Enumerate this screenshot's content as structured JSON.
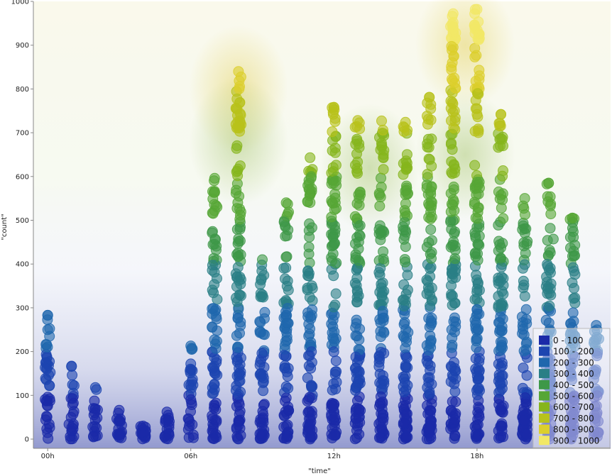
{
  "chart_data": {
    "type": "scatter",
    "xlabel": "\"time\"",
    "ylabel": "\"count\"",
    "ylim": [
      0,
      1000
    ],
    "xlim": [
      -0.6,
      23.6
    ],
    "x_ticks": [
      {
        "value": 0,
        "label": "00h"
      },
      {
        "value": 6,
        "label": "06h"
      },
      {
        "value": 12,
        "label": "12h"
      },
      {
        "value": 18,
        "label": "18h"
      }
    ],
    "y_ticks": [
      0,
      100,
      200,
      300,
      400,
      500,
      600,
      700,
      800,
      900,
      1000
    ],
    "grid": false,
    "legend_position": "bottom-right",
    "legend": [
      {
        "label": "0 - 100",
        "color": "#1a2aa8"
      },
      {
        "label": "100 - 200",
        "color": "#1c45b0"
      },
      {
        "label": "200 - 300",
        "color": "#1f67ad"
      },
      {
        "label": "300 - 400",
        "color": "#2a7f86"
      },
      {
        "label": "400 - 500",
        "color": "#3e9848"
      },
      {
        "label": "500 - 600",
        "color": "#56a636"
      },
      {
        "label": "600 - 700",
        "color": "#86b51c"
      },
      {
        "label": "700 - 800",
        "color": "#b8c21a"
      },
      {
        "label": "800 - 900",
        "color": "#dccf2c"
      },
      {
        "label": "900 - 1000",
        "color": "#f2e866"
      }
    ],
    "hourly_columns": [
      {
        "hour": 0,
        "max": 283
      },
      {
        "hour": 1,
        "max": 167
      },
      {
        "hour": 2,
        "max": 118
      },
      {
        "hour": 3,
        "max": 66
      },
      {
        "hour": 4,
        "max": 30
      },
      {
        "hour": 5,
        "max": 62
      },
      {
        "hour": 6,
        "max": 213
      },
      {
        "hour": 7,
        "max": 596
      },
      {
        "hour": 8,
        "max": 840
      },
      {
        "hour": 9,
        "max": 410
      },
      {
        "hour": 10,
        "max": 540
      },
      {
        "hour": 11,
        "max": 643
      },
      {
        "hour": 12,
        "max": 758
      },
      {
        "hour": 13,
        "max": 728
      },
      {
        "hour": 14,
        "max": 727
      },
      {
        "hour": 15,
        "max": 724
      },
      {
        "hour": 16,
        "max": 781
      },
      {
        "hour": 17,
        "max": 972
      },
      {
        "hour": 18,
        "max": 982
      },
      {
        "hour": 19,
        "max": 742
      },
      {
        "hour": 20,
        "max": 550
      },
      {
        "hour": 21,
        "max": 585
      },
      {
        "hour": 22,
        "max": 505
      },
      {
        "hour": 23,
        "max": 260
      }
    ],
    "outliers": [
      {
        "x": 0,
        "y": 283
      },
      {
        "x": 0,
        "y": 250
      },
      {
        "x": 21,
        "y": 585
      },
      {
        "x": 21.2,
        "y": 457
      },
      {
        "x": 22,
        "y": 505
      },
      {
        "x": 16,
        "y": 781
      },
      {
        "x": 19,
        "y": 742
      },
      {
        "x": 12,
        "y": 758
      }
    ]
  }
}
